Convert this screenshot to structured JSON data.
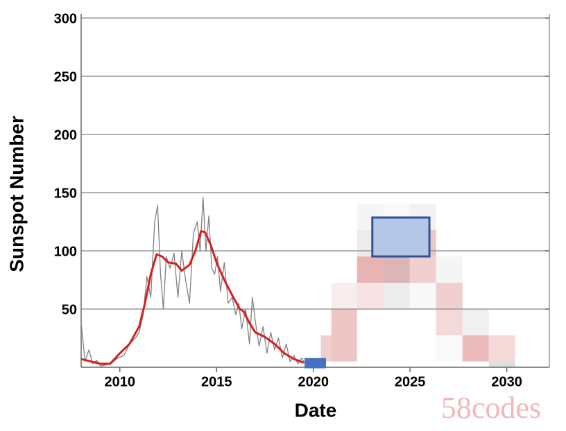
{
  "chart_data": {
    "type": "line",
    "xlabel": "Date",
    "ylabel": "Sunspot Number",
    "watermark": "58codes",
    "xlim": [
      2008,
      2032.2
    ],
    "xticks": [
      2010,
      2015,
      2020,
      2025,
      2030
    ],
    "ylim": [
      0,
      300
    ],
    "yticks": [
      50,
      100,
      150,
      200,
      250,
      300
    ],
    "grid": true,
    "series": [
      {
        "color": "#808080",
        "x": [
          2008,
          2008.2,
          2008.4,
          2008.6,
          2008.8,
          2009,
          2009.3,
          2009.6,
          2009.9,
          2010.2,
          2010.5,
          2010.8,
          2011,
          2011.2,
          2011.4,
          2011.6,
          2011.8,
          2011.95,
          2012.1,
          2012.25,
          2012.4,
          2012.6,
          2012.8,
          2013,
          2013.2,
          2013.4,
          2013.6,
          2013.8,
          2014,
          2014.15,
          2014.3,
          2014.45,
          2014.6,
          2014.75,
          2014.9,
          2015.05,
          2015.2,
          2015.4,
          2015.6,
          2015.8,
          2016,
          2016.15,
          2016.3,
          2016.5,
          2016.7,
          2016.85,
          2017,
          2017.2,
          2017.4,
          2017.6,
          2017.8,
          2018,
          2018.2,
          2018.4,
          2018.6,
          2018.8,
          2019,
          2019.2,
          2019.4,
          2019.6
        ],
        "values": [
          38,
          5,
          15,
          3,
          6,
          1,
          2,
          4,
          8,
          10,
          20,
          25,
          30,
          45,
          78,
          60,
          125,
          139,
          80,
          50,
          95,
          85,
          98,
          60,
          100,
          75,
          55,
          115,
          125,
          100,
          146,
          100,
          130,
          85,
          80,
          95,
          65,
          90,
          55,
          60,
          45,
          55,
          33,
          50,
          20,
          60,
          40,
          18,
          35,
          12,
          30,
          15,
          25,
          8,
          20,
          5,
          10,
          3,
          8,
          2
        ]
      },
      {
        "color": "#d42020",
        "x": [
          2008,
          2008.5,
          2009,
          2009.5,
          2010,
          2010.5,
          2011,
          2011.3,
          2011.6,
          2011.9,
          2012.2,
          2012.5,
          2012.9,
          2013.2,
          2013.6,
          2013.9,
          2014.2,
          2014.4,
          2014.7,
          2015,
          2015.4,
          2015.8,
          2016.2,
          2016.4,
          2016.7,
          2017,
          2017.5,
          2018,
          2018.5,
          2019,
          2019.5
        ],
        "values": [
          7,
          5,
          3,
          3,
          12,
          20,
          35,
          55,
          80,
          97,
          95,
          90,
          89,
          83,
          88,
          100,
          117,
          116,
          105,
          90,
          75,
          62,
          50,
          48,
          38,
          30,
          26,
          20,
          12,
          7,
          4
        ]
      }
    ],
    "cells": [
      {
        "x": [
          2020.39,
          2020.93
        ],
        "y": [
          5,
          27.4
        ],
        "color": "#c84040",
        "weight": 0.25
      },
      {
        "x": [
          2020.93,
          2022.26
        ],
        "y": [
          5,
          27.4
        ],
        "color": "#c84040",
        "weight": 0.3
      },
      {
        "x": [
          2020.93,
          2022.26
        ],
        "y": [
          27.4,
          50
        ],
        "color": "#c84040",
        "weight": 0.3
      },
      {
        "x": [
          2020.93,
          2022.26
        ],
        "y": [
          50,
          72.6
        ],
        "color": "#c84040",
        "weight": 0.1
      },
      {
        "x": [
          2022.26,
          2023.62
        ],
        "y": [
          50,
          72.6
        ],
        "color": "#c84040",
        "weight": 0.15
      },
      {
        "x": [
          2022.26,
          2023.62
        ],
        "y": [
          72.6,
          95.2
        ],
        "color": "#c84040",
        "weight": 0.4
      },
      {
        "x": [
          2022.26,
          2023.62
        ],
        "y": [
          95.2,
          117.9
        ],
        "color": "#808080",
        "weight": 0.15
      },
      {
        "x": [
          2022.26,
          2023.62
        ],
        "y": [
          117.9,
          140.5
        ],
        "color": "#808080",
        "weight": 0.08
      },
      {
        "x": [
          2023.62,
          2024.98
        ],
        "y": [
          50,
          72.6
        ],
        "color": "#808080",
        "weight": 0.15
      },
      {
        "x": [
          2023.62,
          2024.98
        ],
        "y": [
          72.6,
          95.2
        ],
        "color": "#a84848",
        "weight": 0.4
      },
      {
        "x": [
          2023.62,
          2024.98
        ],
        "y": [
          117.9,
          140.5
        ],
        "color": "#808080",
        "weight": 0.05
      },
      {
        "x": [
          2024.98,
          2026.34
        ],
        "y": [
          50,
          72.6
        ],
        "color": "#808080",
        "weight": 0.06
      },
      {
        "x": [
          2024.98,
          2026.34
        ],
        "y": [
          72.6,
          95.2
        ],
        "color": "#c84040",
        "weight": 0.25
      },
      {
        "x": [
          2024.98,
          2026.34
        ],
        "y": [
          95.2,
          117.9
        ],
        "color": "#c84040",
        "weight": 0.3
      },
      {
        "x": [
          2024.98,
          2026.34
        ],
        "y": [
          117.9,
          140.5
        ],
        "color": "#808080",
        "weight": 0.1
      },
      {
        "x": [
          2026.34,
          2027.71
        ],
        "y": [
          5,
          27.4
        ],
        "color": "#808080",
        "weight": 0.04
      },
      {
        "x": [
          2026.34,
          2027.71
        ],
        "y": [
          27.4,
          50
        ],
        "color": "#c84040",
        "weight": 0.2
      },
      {
        "x": [
          2026.34,
          2027.71
        ],
        "y": [
          50,
          72.6
        ],
        "color": "#c84040",
        "weight": 0.25
      },
      {
        "x": [
          2026.34,
          2027.71
        ],
        "y": [
          72.6,
          95.2
        ],
        "color": "#808080",
        "weight": 0.08
      },
      {
        "x": [
          2027.71,
          2029.07
        ],
        "y": [
          5,
          27.4
        ],
        "color": "#c84040",
        "weight": 0.35
      },
      {
        "x": [
          2027.71,
          2029.07
        ],
        "y": [
          27.4,
          50
        ],
        "color": "#808080",
        "weight": 0.12
      },
      {
        "x": [
          2029.07,
          2030.43
        ],
        "y": [
          5,
          27.4
        ],
        "color": "#c84040",
        "weight": 0.2
      },
      {
        "x": [
          2029.07,
          2030.43
        ],
        "y": [
          0,
          5
        ],
        "color": "#808080",
        "weight": 0.25
      }
    ],
    "boxes": [
      {
        "x": [
          2019.6,
          2020.6
        ],
        "y": [
          0,
          7
        ],
        "color": "#4472c4",
        "fill": "#4472c4"
      },
      {
        "x": [
          2023.05,
          2026
        ],
        "y": [
          95.2,
          128.6
        ],
        "color": "#2f5496",
        "fill": "#b4c7e7"
      }
    ]
  }
}
